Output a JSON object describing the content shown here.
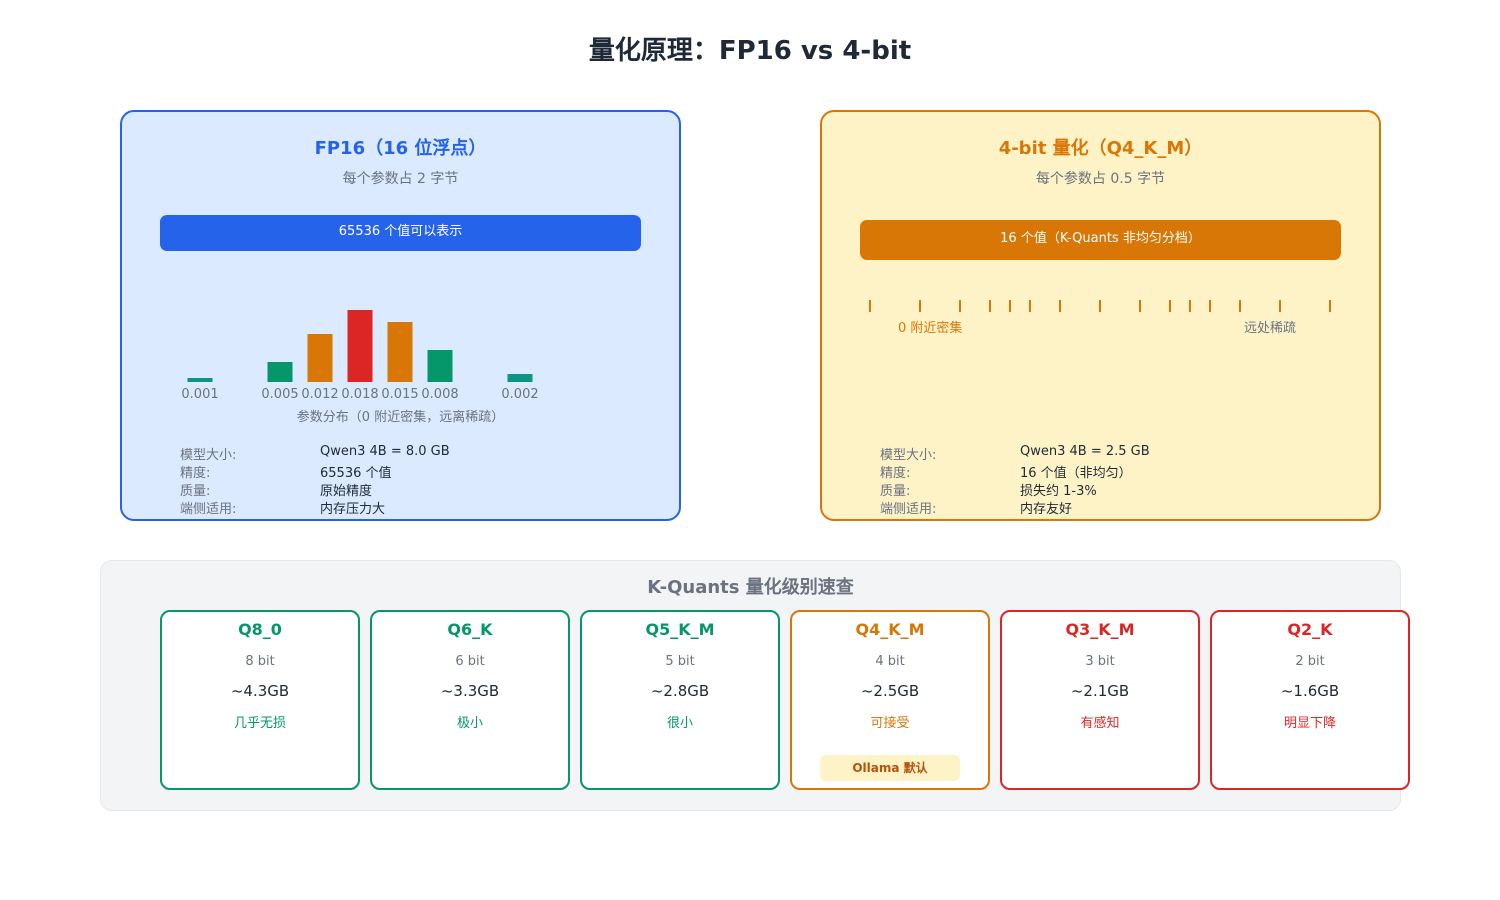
{
  "title": "量化原理：FP16 vs 4-bit",
  "fp16": {
    "title": "FP16（16 位浮点）",
    "subtitle": "每个参数占 2 字节",
    "bar_label": "65536 个值可以表示",
    "distribution_caption": "参数分布（0 附近密集，远离稀疏）",
    "info": [
      {
        "key": "模型大小:",
        "value": "Qwen3 4B = 8.0 GB"
      },
      {
        "key": "精度:",
        "value": "65536 个值"
      },
      {
        "key": "质量:",
        "value": "原始精度"
      },
      {
        "key": "端侧适用:",
        "value": "内存压力大"
      }
    ]
  },
  "q4": {
    "title": "4-bit 量化（Q4_K_M）",
    "subtitle": "每个参数占 0.5 字节",
    "bar_label": "16 个值（K-Quants 非均匀分档）",
    "dense_label": "0 附近密集",
    "sparse_label": "远处稀疏",
    "info": [
      {
        "key": "模型大小:",
        "value": "Qwen3 4B = 2.5 GB"
      },
      {
        "key": "精度:",
        "value": "16 个值（非均匀）"
      },
      {
        "key": "质量:",
        "value": "损失约 1-3%"
      },
      {
        "key": "端侧适用:",
        "value": "内存友好"
      }
    ]
  },
  "chart_data": {
    "type": "bar",
    "categories": [
      "0.001",
      "0.005",
      "0.012",
      "0.018",
      "0.015",
      "0.008",
      "0.002"
    ],
    "values": [
      0.001,
      0.005,
      0.012,
      0.018,
      0.015,
      0.008,
      0.002
    ],
    "xlabel": "参数分布（0 附近密集，远离稀疏）",
    "colors": [
      "#0d9488",
      "#059669",
      "#d97706",
      "#dc2626",
      "#d97706",
      "#059669",
      "#0d9488"
    ]
  },
  "reference": {
    "title": "K-Quants 量化级别速查",
    "levels": [
      {
        "name": "Q8_0",
        "bits": "8 bit",
        "size": "~4.3GB",
        "quality": "几乎无损",
        "color": "#059669"
      },
      {
        "name": "Q6_K",
        "bits": "6 bit",
        "size": "~3.3GB",
        "quality": "极小",
        "color": "#059669"
      },
      {
        "name": "Q5_K_M",
        "bits": "5 bit",
        "size": "~2.8GB",
        "quality": "很小",
        "color": "#059669"
      },
      {
        "name": "Q4_K_M",
        "bits": "4 bit",
        "size": "~2.5GB",
        "quality": "可接受",
        "color": "#d97706",
        "badge": "Ollama 默认"
      },
      {
        "name": "Q3_K_M",
        "bits": "3 bit",
        "size": "~2.1GB",
        "quality": "有感知",
        "color": "#dc2626"
      },
      {
        "name": "Q2_K",
        "bits": "2 bit",
        "size": "~1.6GB",
        "quality": "明显下降",
        "color": "#dc2626"
      }
    ]
  },
  "colors": {
    "blue": "#2563eb",
    "orange": "#d97706",
    "green": "#059669",
    "red": "#dc2626"
  }
}
